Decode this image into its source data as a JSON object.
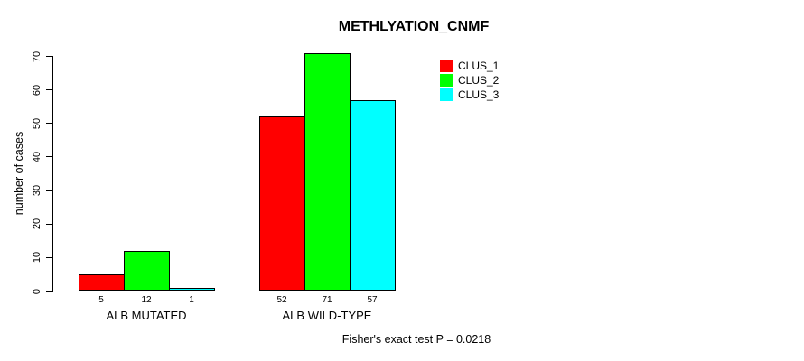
{
  "title": "METHLYATION_CNMF",
  "caption": "Fisher's exact test P = 0.0218",
  "chart_data": {
    "type": "bar",
    "title": "METHLYATION_CNMF",
    "xlabel": "",
    "ylabel": "number of cases",
    "ylim": [
      0,
      70
    ],
    "yticks": [
      0,
      10,
      20,
      30,
      40,
      50,
      60,
      70
    ],
    "categories": [
      "ALB MUTATED",
      "ALB WILD-TYPE"
    ],
    "series": [
      {
        "name": "CLUS_1",
        "color": "#ff0000",
        "values": [
          5,
          52
        ]
      },
      {
        "name": "CLUS_2",
        "color": "#00ff00",
        "values": [
          12,
          71
        ]
      },
      {
        "name": "CLUS_3",
        "color": "#00ffff",
        "values": [
          1,
          57
        ]
      }
    ],
    "bar_value_labels": [
      [
        "5",
        "12",
        "1"
      ],
      [
        "52",
        "71",
        "57"
      ]
    ],
    "grid": false,
    "legend_position": "top-right",
    "annotation": "Fisher's exact test P = 0.0218"
  },
  "legend": {
    "items": [
      {
        "label": "CLUS_1",
        "color": "#ff0000"
      },
      {
        "label": "CLUS_2",
        "color": "#00ff00"
      },
      {
        "label": "CLUS_3",
        "color": "#00ffff"
      }
    ]
  }
}
